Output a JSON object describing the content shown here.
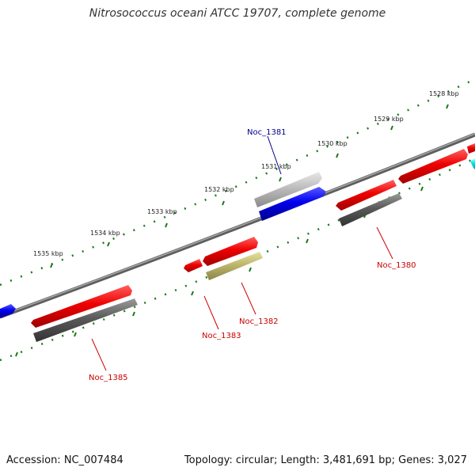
{
  "title": "Nitrosococcus oceani ATCC 19707, complete genome",
  "footer": {
    "accession": "Accession: NC_007484",
    "topology": "Topology: circular; Length: 3,481,691 bp; Genes: 3,027"
  },
  "ticks": [
    {
      "label": "1528 kbp"
    },
    {
      "label": "1529 kbp"
    },
    {
      "label": "1530 kbp"
    },
    {
      "label": "1531 kbp"
    },
    {
      "label": "1532 kbp"
    },
    {
      "label": "1533 kbp"
    },
    {
      "label": "1534 kbp"
    },
    {
      "label": "1535 kbp"
    }
  ],
  "gene_labels": [
    {
      "name": "Noc_1381",
      "color": "#00008b"
    },
    {
      "name": "Noc_1380",
      "color": "#cc0000"
    },
    {
      "name": "Noc_1382",
      "color": "#cc0000"
    },
    {
      "name": "Noc_1383",
      "color": "#cc0000"
    },
    {
      "name": "Noc_1385",
      "color": "#cc0000"
    }
  ],
  "colors": {
    "backbone": "#808080",
    "cds_forward": "#ee0000",
    "cds_gray": "#666666",
    "cds_blue": "#0000ee",
    "cds_silver": "#b0b0b0",
    "cds_khaki": "#bdb76b",
    "cds_cyan": "#00e5ee",
    "ticks": "#1a7a1a"
  }
}
